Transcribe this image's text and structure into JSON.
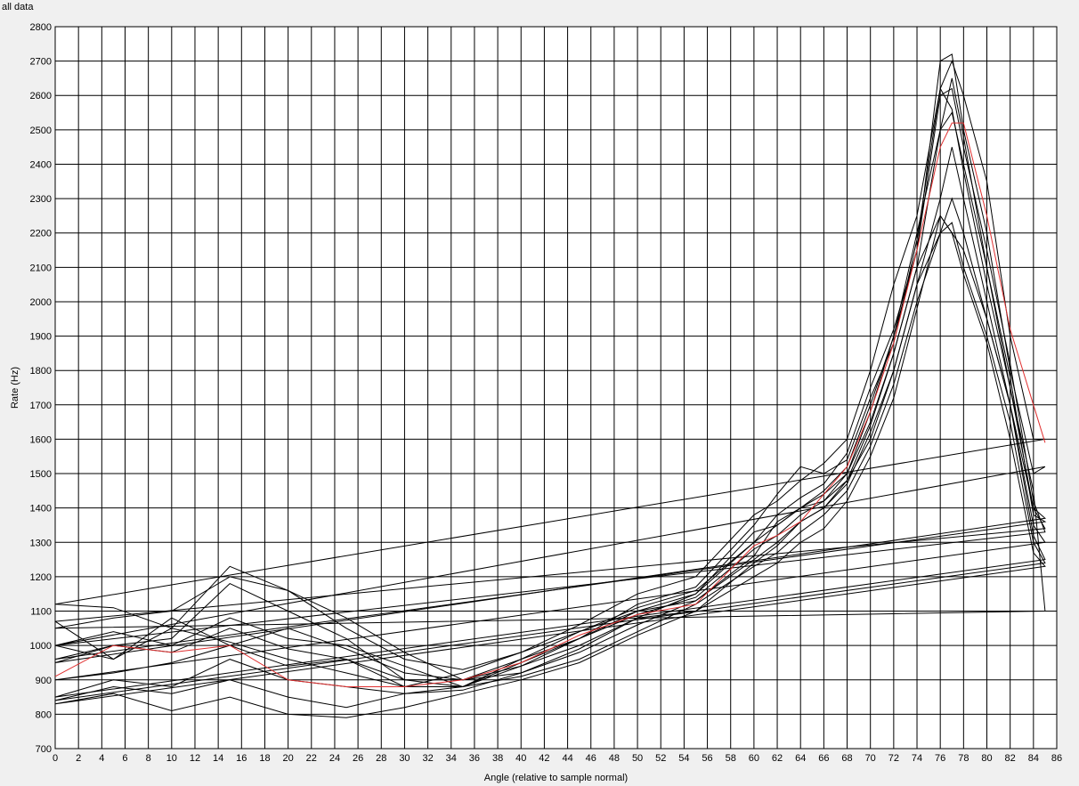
{
  "chart_data": {
    "type": "line",
    "title": "all data",
    "xlabel": "Angle (relative to sample normal)",
    "ylabel": "Rate (Hz)",
    "xlim": [
      0,
      86
    ],
    "ylim": [
      700,
      2800
    ],
    "xticks": [
      0,
      2,
      4,
      6,
      8,
      10,
      12,
      14,
      16,
      18,
      20,
      22,
      24,
      26,
      28,
      30,
      32,
      34,
      36,
      38,
      40,
      42,
      44,
      46,
      48,
      50,
      52,
      54,
      56,
      58,
      60,
      62,
      64,
      66,
      68,
      70,
      72,
      74,
      76,
      78,
      80,
      82,
      84,
      86
    ],
    "yticks": [
      700,
      800,
      900,
      1000,
      1100,
      1200,
      1300,
      1400,
      1500,
      1600,
      1700,
      1800,
      1900,
      2000,
      2100,
      2200,
      2300,
      2400,
      2500,
      2600,
      2700,
      2800
    ],
    "grid": true,
    "colors": {
      "background": "#ffffff",
      "grid": "#000000",
      "series": "#000000",
      "highlight": "#e03030"
    },
    "series": [
      {
        "color": "#000000",
        "x": [
          0,
          5,
          10,
          15,
          20,
          25,
          30,
          35,
          40,
          45,
          50,
          55,
          60,
          62,
          64,
          66,
          68,
          70,
          72,
          74,
          76,
          77,
          78,
          80,
          82,
          84,
          85,
          0
        ],
        "y": [
          1120,
          1110,
          1050,
          1230,
          1160,
          1080,
          980,
          900,
          940,
          1020,
          1120,
          1170,
          1350,
          1440,
          1520,
          1500,
          1540,
          1720,
          1880,
          2180,
          2620,
          2700,
          2600,
          2350,
          1900,
          1600,
          1600,
          1120
        ]
      },
      {
        "color": "#000000",
        "x": [
          0,
          5,
          10,
          15,
          20,
          25,
          30,
          35,
          40,
          45,
          50,
          55,
          60,
          62,
          64,
          66,
          68,
          70,
          72,
          74,
          76,
          77,
          78,
          80,
          82,
          84,
          85,
          0
        ],
        "y": [
          1000,
          1040,
          1000,
          1080,
          1020,
          1000,
          940,
          880,
          960,
          1040,
          1110,
          1160,
          1300,
          1380,
          1430,
          1470,
          1560,
          1750,
          1920,
          2150,
          2700,
          2720,
          2500,
          2200,
          1800,
          1500,
          1520,
          1000
        ]
      },
      {
        "color": "#000000",
        "x": [
          0,
          5,
          10,
          15,
          20,
          25,
          30,
          35,
          40,
          45,
          50,
          55,
          60,
          62,
          64,
          66,
          68,
          70,
          72,
          74,
          76,
          77,
          78,
          80,
          82,
          84,
          85,
          0
        ],
        "y": [
          950,
          1000,
          1020,
          1180,
          1100,
          1020,
          900,
          880,
          940,
          1000,
          1080,
          1150,
          1330,
          1350,
          1400,
          1440,
          1500,
          1650,
          1850,
          2100,
          2500,
          2650,
          2480,
          2100,
          1750,
          1400,
          1370,
          950
        ]
      },
      {
        "color": "#000000",
        "x": [
          0,
          5,
          10,
          15,
          20,
          25,
          30,
          35,
          40,
          45,
          50,
          55,
          60,
          62,
          64,
          66,
          68,
          70,
          72,
          74,
          76,
          77,
          78,
          80,
          82,
          84,
          85,
          0
        ],
        "y": [
          1070,
          960,
          1080,
          1000,
          940,
          960,
          880,
          920,
          980,
          1040,
          1100,
          1130,
          1260,
          1360,
          1400,
          1420,
          1480,
          1600,
          1800,
          2050,
          2200,
          2300,
          2200,
          1950,
          1700,
          1400,
          1340,
          1070
        ]
      },
      {
        "color": "#000000",
        "x": [
          0,
          5,
          10,
          15,
          20,
          25,
          30,
          35,
          40,
          45,
          50,
          55,
          60,
          62,
          64,
          66,
          68,
          70,
          72,
          74,
          76,
          77,
          78,
          80,
          82,
          84,
          85,
          0
        ],
        "y": [
          900,
          920,
          950,
          1000,
          1050,
          990,
          920,
          900,
          920,
          990,
          1080,
          1100,
          1240,
          1290,
          1360,
          1400,
          1470,
          1620,
          1800,
          2050,
          2300,
          2450,
          2300,
          2000,
          1700,
          1350,
          1300,
          900
        ]
      },
      {
        "color": "#000000",
        "x": [
          0,
          5,
          10,
          15,
          20,
          25,
          30,
          35,
          40,
          45,
          50,
          55,
          60,
          62,
          64,
          66,
          68,
          70,
          72,
          74,
          76,
          77,
          78,
          80,
          82,
          84,
          85,
          0
        ],
        "y": [
          840,
          880,
          860,
          900,
          850,
          820,
          860,
          880,
          910,
          960,
          1040,
          1120,
          1230,
          1270,
          1330,
          1380,
          1450,
          1580,
          1760,
          2000,
          2200,
          2230,
          2100,
          1900,
          1650,
          1300,
          1240,
          840
        ]
      },
      {
        "color": "#000000",
        "x": [
          0,
          5,
          10,
          15,
          20,
          25,
          30,
          35,
          40,
          45,
          50,
          55,
          60,
          62,
          64,
          66,
          68,
          70,
          72,
          74,
          76,
          77,
          78,
          80,
          82,
          84,
          85,
          0
        ],
        "y": [
          830,
          860,
          810,
          850,
          800,
          790,
          820,
          860,
          900,
          950,
          1030,
          1100,
          1200,
          1240,
          1300,
          1340,
          1420,
          1550,
          1720,
          1980,
          2250,
          2200,
          2080,
          1880,
          1600,
          1270,
          1230,
          830
        ]
      },
      {
        "color": "#000000",
        "x": [
          0,
          5,
          10,
          15,
          20,
          25,
          30,
          35,
          40,
          45,
          50,
          55,
          60,
          62,
          64,
          66,
          68,
          70,
          72,
          74,
          76,
          77,
          78,
          80,
          82,
          84,
          85,
          0
        ],
        "y": [
          1050,
          1080,
          1100,
          1200,
          1160,
          1050,
          960,
          930,
          980,
          1060,
          1150,
          1200,
          1380,
          1420,
          1480,
          1530,
          1600,
          1800,
          2050,
          2250,
          2620,
          2560,
          2380,
          2050,
          1750,
          1450,
          1100,
          1050
        ]
      },
      {
        "color": "#000000",
        "x": [
          0,
          5,
          10,
          15,
          20,
          25,
          30,
          35,
          40,
          45,
          50,
          55,
          60,
          62,
          64,
          66,
          68,
          70,
          72,
          74,
          76,
          77,
          78,
          80,
          82,
          84,
          85,
          0
        ],
        "y": [
          960,
          1000,
          980,
          1050,
          990,
          960,
          900,
          900,
          960,
          1020,
          1090,
          1140,
          1280,
          1320,
          1380,
          1420,
          1500,
          1680,
          1900,
          2200,
          2500,
          2550,
          2400,
          2100,
          1780,
          1380,
          1360,
          960
        ]
      },
      {
        "color": "#000000",
        "x": [
          0,
          5,
          10,
          15,
          20,
          25,
          30,
          35,
          40,
          45,
          50,
          55,
          60,
          62,
          64,
          66,
          68,
          70,
          72,
          74,
          76,
          77,
          78,
          80,
          82,
          84,
          85,
          0
        ],
        "y": [
          850,
          900,
          880,
          960,
          900,
          880,
          860,
          870,
          920,
          980,
          1060,
          1130,
          1250,
          1300,
          1360,
          1400,
          1480,
          1640,
          1850,
          2100,
          2250,
          2200,
          2150,
          1950,
          1700,
          1320,
          1250,
          850
        ]
      },
      {
        "color": "#000000",
        "x": [
          0,
          5,
          10,
          15,
          20,
          25,
          30,
          35,
          40,
          45,
          50,
          55,
          60,
          62,
          64,
          66,
          68,
          70,
          72,
          74,
          76,
          77,
          78,
          80,
          82,
          84,
          85,
          0
        ],
        "y": [
          1000,
          960,
          1050,
          1010,
          960,
          920,
          880,
          880,
          950,
          1020,
          1100,
          1150,
          1300,
          1350,
          1400,
          1450,
          1520,
          1700,
          1900,
          2150,
          2600,
          2620,
          2450,
          2150,
          1820,
          1420,
          1330,
          1000
        ]
      },
      {
        "color": "#e03030",
        "x": [
          0,
          5,
          10,
          15,
          20,
          25,
          30,
          35,
          40,
          45,
          50,
          55,
          60,
          62,
          64,
          66,
          68,
          70,
          72,
          74,
          76,
          77,
          78,
          80,
          82,
          84,
          85
        ],
        "y": [
          910,
          1000,
          980,
          1000,
          900,
          880,
          880,
          900,
          950,
          1030,
          1090,
          1120,
          1290,
          1320,
          1360,
          1440,
          1520,
          1680,
          1880,
          2150,
          2450,
          2520,
          2520,
          2250,
          1920,
          1700,
          1590
        ]
      }
    ]
  }
}
